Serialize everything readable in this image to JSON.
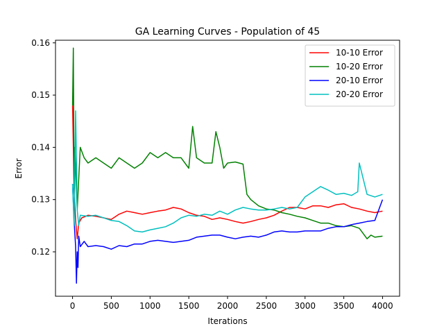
{
  "chart_data": {
    "type": "line",
    "title": "GA Learning Curves - Population of 45",
    "xlabel": "Iterations",
    "ylabel": "Error",
    "xlim": [
      -220,
      4220
    ],
    "ylim": [
      0.1115,
      0.1605
    ],
    "xticks": [
      0,
      500,
      1000,
      1500,
      2000,
      2500,
      3000,
      3500,
      4000
    ],
    "xtick_labels": [
      "0",
      "500",
      "1000",
      "1500",
      "2000",
      "2500",
      "3000",
      "3500",
      "4000"
    ],
    "yticks": [
      0.12,
      0.13,
      0.14,
      0.15,
      0.16
    ],
    "ytick_labels": [
      "0.12",
      "0.13",
      "0.14",
      "0.15",
      "0.16"
    ],
    "grid": false,
    "legend_position": "top-right",
    "series": [
      {
        "name": "10-10 Error",
        "color": "#ff0000",
        "x": [
          0,
          20,
          40,
          60,
          80,
          120,
          200,
          300,
          400,
          500,
          600,
          700,
          800,
          900,
          1000,
          1100,
          1200,
          1300,
          1400,
          1500,
          1600,
          1700,
          1800,
          1900,
          2000,
          2100,
          2200,
          2300,
          2400,
          2500,
          2600,
          2700,
          2800,
          2900,
          3000,
          3100,
          3200,
          3300,
          3400,
          3500,
          3600,
          3700,
          3800,
          3900,
          4000
        ],
        "y": [
          0.148,
          0.132,
          0.126,
          0.1225,
          0.1255,
          0.1265,
          0.127,
          0.1268,
          0.1265,
          0.1262,
          0.1272,
          0.1278,
          0.1275,
          0.1272,
          0.1275,
          0.1278,
          0.128,
          0.1285,
          0.1282,
          0.1275,
          0.127,
          0.1268,
          0.1262,
          0.1265,
          0.1262,
          0.1258,
          0.1255,
          0.1258,
          0.1262,
          0.1265,
          0.127,
          0.1278,
          0.1285,
          0.1285,
          0.1282,
          0.1288,
          0.1288,
          0.1285,
          0.129,
          0.1292,
          0.1285,
          0.1282,
          0.1278,
          0.1275,
          0.1278
        ]
      },
      {
        "name": "10-20 Error",
        "color": "#008000",
        "x": [
          0,
          10,
          20,
          30,
          40,
          60,
          80,
          100,
          150,
          200,
          300,
          400,
          500,
          600,
          700,
          800,
          900,
          1000,
          1100,
          1200,
          1300,
          1400,
          1500,
          1550,
          1600,
          1700,
          1800,
          1850,
          1900,
          1950,
          2000,
          2100,
          2200,
          2250,
          2300,
          2400,
          2500,
          2600,
          2700,
          2800,
          2900,
          3000,
          3100,
          3200,
          3300,
          3400,
          3500,
          3600,
          3700,
          3750,
          3800,
          3850,
          3900,
          4000
        ],
        "y": [
          0.148,
          0.159,
          0.132,
          0.14,
          0.136,
          0.128,
          0.134,
          0.14,
          0.138,
          0.137,
          0.138,
          0.137,
          0.136,
          0.138,
          0.137,
          0.136,
          0.137,
          0.139,
          0.138,
          0.139,
          0.138,
          0.138,
          0.136,
          0.144,
          0.138,
          0.137,
          0.137,
          0.143,
          0.14,
          0.136,
          0.137,
          0.1372,
          0.1368,
          0.131,
          0.13,
          0.1288,
          0.1282,
          0.128,
          0.1275,
          0.1272,
          0.1268,
          0.1265,
          0.126,
          0.1255,
          0.1255,
          0.125,
          0.1248,
          0.125,
          0.1245,
          0.1235,
          0.1225,
          0.1232,
          0.1228,
          0.123
        ]
      },
      {
        "name": "20-10 Error",
        "color": "#0000ff",
        "x": [
          0,
          20,
          40,
          50,
          60,
          70,
          80,
          100,
          150,
          200,
          300,
          400,
          500,
          600,
          700,
          800,
          900,
          1000,
          1100,
          1200,
          1300,
          1400,
          1500,
          1600,
          1700,
          1800,
          1900,
          2000,
          2100,
          2200,
          2300,
          2400,
          2500,
          2600,
          2700,
          2800,
          2900,
          3000,
          3100,
          3200,
          3300,
          3400,
          3500,
          3600,
          3700,
          3800,
          3900,
          4000
        ],
        "y": [
          0.133,
          0.126,
          0.121,
          0.114,
          0.12,
          0.117,
          0.123,
          0.121,
          0.122,
          0.121,
          0.1212,
          0.121,
          0.1205,
          0.1212,
          0.121,
          0.1215,
          0.1215,
          0.122,
          0.1222,
          0.122,
          0.1218,
          0.122,
          0.1222,
          0.1228,
          0.123,
          0.1232,
          0.1232,
          0.1228,
          0.1225,
          0.1228,
          0.123,
          0.1228,
          0.1232,
          0.1238,
          0.124,
          0.1238,
          0.1238,
          0.124,
          0.124,
          0.124,
          0.1245,
          0.1248,
          0.1248,
          0.1252,
          0.1255,
          0.1258,
          0.126,
          0.13
        ]
      },
      {
        "name": "20-20 Error",
        "color": "#00bfbf",
        "x": [
          0,
          20,
          40,
          60,
          80,
          100,
          200,
          300,
          400,
          500,
          600,
          700,
          800,
          900,
          1000,
          1100,
          1200,
          1300,
          1400,
          1500,
          1600,
          1700,
          1800,
          1900,
          2000,
          2100,
          2200,
          2300,
          2400,
          2500,
          2600,
          2700,
          2800,
          2900,
          3000,
          3100,
          3200,
          3300,
          3400,
          3500,
          3600,
          3680,
          3700,
          3800,
          3900,
          4000
        ],
        "y": [
          0.133,
          0.125,
          0.147,
          0.128,
          0.125,
          0.127,
          0.1268,
          0.127,
          0.1265,
          0.126,
          0.1258,
          0.125,
          0.124,
          0.1238,
          0.1242,
          0.1245,
          0.1248,
          0.1255,
          0.1265,
          0.127,
          0.1268,
          0.1272,
          0.127,
          0.1278,
          0.1272,
          0.128,
          0.1285,
          0.1282,
          0.128,
          0.128,
          0.1282,
          0.1285,
          0.1282,
          0.1285,
          0.1305,
          0.1315,
          0.1325,
          0.1318,
          0.131,
          0.1312,
          0.1308,
          0.1315,
          0.137,
          0.131,
          0.1305,
          0.131
        ]
      }
    ]
  }
}
